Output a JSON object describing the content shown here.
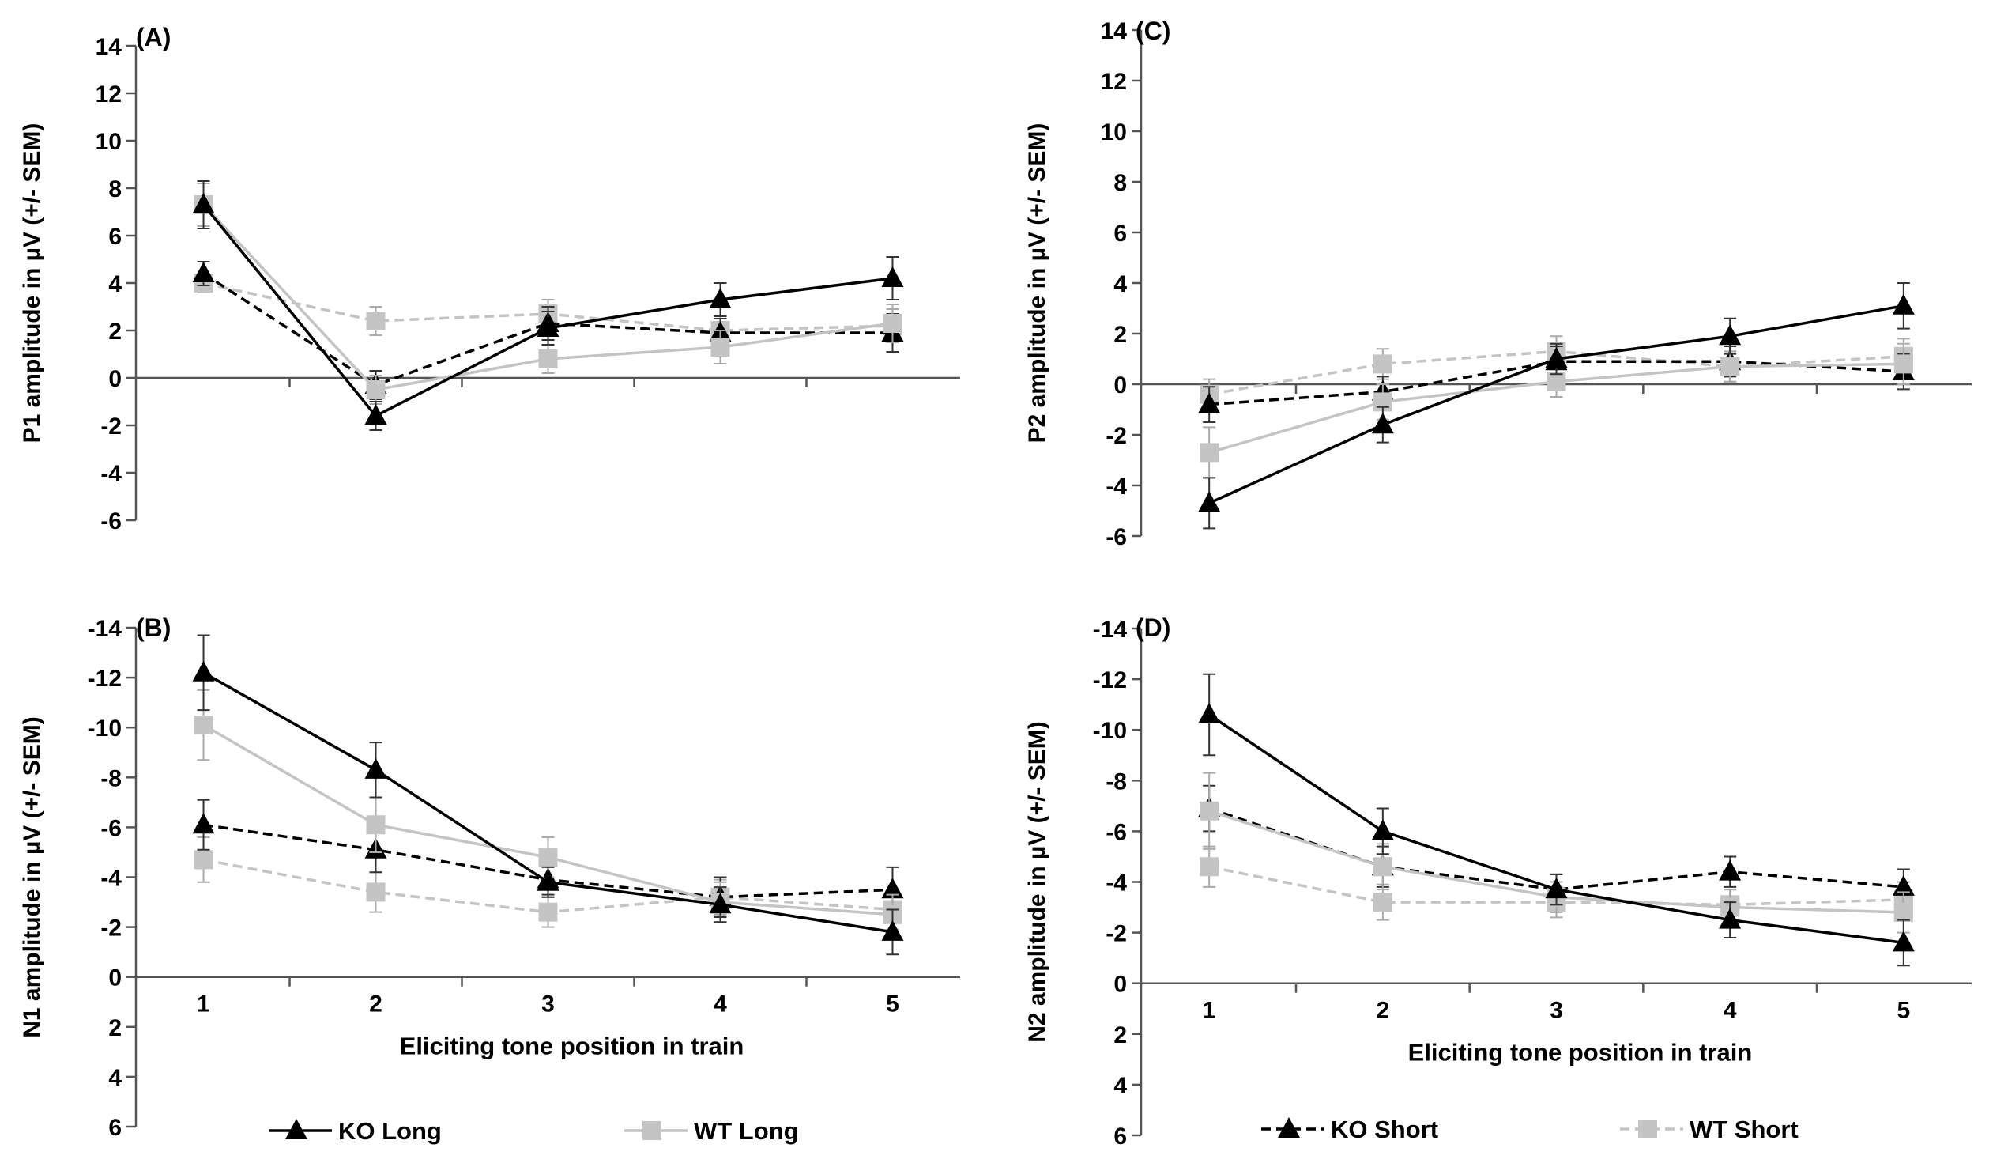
{
  "legend": [
    {
      "label": "KO Long",
      "color": "#000000",
      "dash": false,
      "marker": "triangle"
    },
    {
      "label": "WT Long",
      "color": "#c4c4c4",
      "dash": false,
      "marker": "square"
    },
    {
      "label": "KO Short",
      "color": "#000000",
      "dash": true,
      "marker": "triangle"
    },
    {
      "label": "WT Short",
      "color": "#c4c4c4",
      "dash": true,
      "marker": "square"
    }
  ],
  "chart_data": [
    {
      "panel": "(A)",
      "type": "line",
      "ylabel": "P1 amplitude in µV (+/- SEM)",
      "xlabel": "",
      "x": [
        1,
        2,
        3,
        4,
        5
      ],
      "ylim": [
        -6,
        14
      ],
      "yticks": [
        -6,
        -4,
        -2,
        0,
        2,
        4,
        6,
        8,
        10,
        12,
        14
      ],
      "yticklabels": [
        "-6",
        "-4",
        "-2",
        "0",
        "2",
        "4",
        "6",
        "8",
        "10",
        "12",
        "14"
      ],
      "inverted": false,
      "series": [
        {
          "name": "KO Long",
          "values": [
            7.3,
            -1.6,
            2.1,
            3.3,
            4.2
          ],
          "err": [
            1.0,
            0.6,
            0.7,
            0.7,
            0.9
          ]
        },
        {
          "name": "WT Long",
          "values": [
            7.3,
            -0.5,
            0.8,
            1.3,
            2.3
          ],
          "err": [
            0.9,
            0.6,
            0.6,
            0.7,
            0.8
          ]
        },
        {
          "name": "KO Short",
          "values": [
            4.4,
            -0.3,
            2.3,
            1.9,
            1.9
          ],
          "err": [
            0.5,
            0.6,
            0.7,
            0.6,
            0.8
          ]
        },
        {
          "name": "WT Short",
          "values": [
            4.0,
            2.4,
            2.7,
            2.0,
            2.2
          ],
          "err": [
            0.4,
            0.6,
            0.6,
            0.6,
            0.7
          ]
        }
      ]
    },
    {
      "panel": "(B)",
      "type": "line",
      "ylabel": "N1 amplitude in µV (+/- SEM)",
      "xlabel": "Eliciting tone position in train",
      "x": [
        1,
        2,
        3,
        4,
        5
      ],
      "xticklabels": [
        "1",
        "2",
        "3",
        "4",
        "5"
      ],
      "ylim": [
        6,
        -14
      ],
      "yticks": [
        -14,
        -12,
        -10,
        -8,
        -6,
        -4,
        -2,
        0,
        2,
        4,
        6
      ],
      "yticklabels": [
        "-14",
        "-12",
        "-10",
        "-8",
        "-6",
        "-4",
        "-2",
        "0",
        "2",
        "4",
        "6"
      ],
      "inverted": true,
      "series": [
        {
          "name": "KO Long",
          "values": [
            -12.2,
            -8.3,
            -3.8,
            -2.9,
            -1.8
          ],
          "err": [
            1.5,
            1.1,
            0.6,
            0.7,
            0.9
          ]
        },
        {
          "name": "WT Long",
          "values": [
            -10.1,
            -6.1,
            -4.8,
            -3.0,
            -2.5
          ],
          "err": [
            1.4,
            1.1,
            0.8,
            0.8,
            0.8
          ]
        },
        {
          "name": "KO Short",
          "values": [
            -6.1,
            -5.1,
            -3.9,
            -3.2,
            -3.5
          ],
          "err": [
            1.0,
            0.9,
            0.6,
            0.8,
            0.9
          ]
        },
        {
          "name": "WT Short",
          "values": [
            -4.7,
            -3.4,
            -2.6,
            -3.2,
            -2.7
          ],
          "err": [
            0.9,
            0.8,
            0.6,
            0.7,
            0.8
          ]
        }
      ]
    },
    {
      "panel": "(C)",
      "type": "line",
      "ylabel": "P2 amplitude in µV (+/- SEM)",
      "xlabel": "",
      "x": [
        1,
        2,
        3,
        4,
        5
      ],
      "ylim": [
        -6,
        14
      ],
      "yticks": [
        -6,
        -4,
        -2,
        0,
        2,
        4,
        6,
        8,
        10,
        12,
        14
      ],
      "yticklabels": [
        "-6",
        "-4",
        "-2",
        "0",
        "2",
        "4",
        "6",
        "8",
        "10",
        "12",
        "14"
      ],
      "inverted": false,
      "series": [
        {
          "name": "KO Long",
          "values": [
            -4.7,
            -1.6,
            1.0,
            1.9,
            3.1
          ],
          "err": [
            1.0,
            0.7,
            0.6,
            0.7,
            0.9
          ]
        },
        {
          "name": "WT Long",
          "values": [
            -2.7,
            -0.7,
            0.1,
            0.7,
            0.8
          ],
          "err": [
            1.0,
            0.7,
            0.6,
            0.6,
            0.8
          ]
        },
        {
          "name": "KO Short",
          "values": [
            -0.8,
            -0.3,
            0.9,
            0.9,
            0.5
          ],
          "err": [
            0.7,
            0.6,
            0.6,
            0.6,
            0.7
          ]
        },
        {
          "name": "WT Short",
          "values": [
            -0.4,
            0.8,
            1.3,
            0.7,
            1.1
          ],
          "err": [
            0.6,
            0.6,
            0.6,
            0.6,
            0.7
          ]
        }
      ]
    },
    {
      "panel": "(D)",
      "type": "line",
      "ylabel": "N2 amplitude in µV (+/- SEM)",
      "xlabel": "Eliciting tone position in train",
      "x": [
        1,
        2,
        3,
        4,
        5
      ],
      "xticklabels": [
        "1",
        "2",
        "3",
        "4",
        "5"
      ],
      "ylim": [
        6,
        -14
      ],
      "yticks": [
        -14,
        -12,
        -10,
        -8,
        -6,
        -4,
        -2,
        0,
        2,
        4,
        6
      ],
      "yticklabels": [
        "-14",
        "-12",
        "-10",
        "-8",
        "-6",
        "-4",
        "-2",
        "0",
        "2",
        "4",
        "6"
      ],
      "inverted": true,
      "series": [
        {
          "name": "KO Long",
          "values": [
            -10.6,
            -6.0,
            -3.7,
            -2.5,
            -1.6
          ],
          "err": [
            1.6,
            0.9,
            0.6,
            0.7,
            0.9
          ]
        },
        {
          "name": "WT Long",
          "values": [
            -6.8,
            -4.6,
            -3.4,
            -3.0,
            -2.8
          ],
          "err": [
            1.5,
            0.9,
            0.6,
            0.7,
            0.8
          ]
        },
        {
          "name": "KO Short",
          "values": [
            -6.9,
            -4.6,
            -3.7,
            -4.4,
            -3.8
          ],
          "err": [
            0.9,
            0.8,
            0.6,
            0.6,
            0.7
          ]
        },
        {
          "name": "WT Short",
          "values": [
            -4.6,
            -3.2,
            -3.2,
            -3.1,
            -3.3
          ],
          "err": [
            0.8,
            0.7,
            0.6,
            0.6,
            0.7
          ]
        }
      ]
    }
  ]
}
